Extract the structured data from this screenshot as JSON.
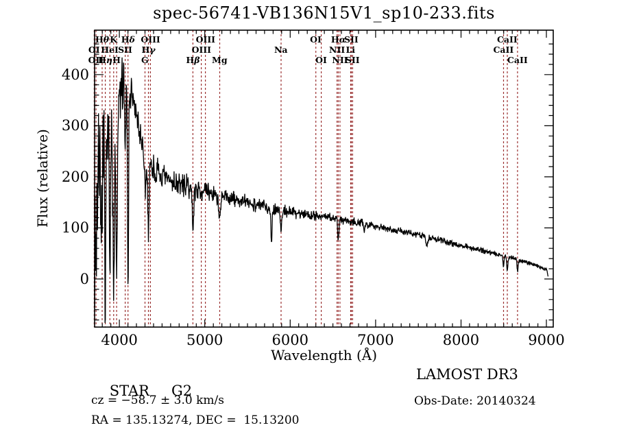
{
  "title_text": "spec-56741-VB136N15V1_sp10-233.fits",
  "colors": {
    "background": "#ffffff",
    "axis": "#000000",
    "spectrum": "#000000",
    "line_marker": "#9b3030",
    "text": "#000000"
  },
  "annotations": {
    "class_label": "STAR",
    "subclass_label": "G2",
    "cz_line": "cz = −58.7 ± 3.0 km/s",
    "radec_line": "RA = 135.13274, DEC =  15.13200",
    "survey": "LAMOST DR3",
    "obs_date": "Obs-Date: 20140324"
  },
  "chart_data": {
    "type": "line",
    "title": "spec-56741-VB136N15V1_sp10-233.fits",
    "xlabel": "Wavelength (Å)",
    "ylabel": "Flux (relative)",
    "xlim": [
      3710,
      9080
    ],
    "ylim": [
      -94,
      487
    ],
    "x_ticks": [
      4000,
      5000,
      6000,
      7000,
      8000,
      9000
    ],
    "y_ticks": [
      0,
      100,
      200,
      300,
      400
    ],
    "x_minor_step": 100,
    "y_minor_step": 20,
    "grid": false,
    "legend": "none",
    "spectral_lines": [
      {
        "label": "Hθ",
        "wavelength": 3798,
        "row": 1
      },
      {
        "label": "K",
        "wavelength": 3933,
        "row": 1
      },
      {
        "label": "Hδ",
        "wavelength": 4101,
        "row": 1
      },
      {
        "label": "OIII",
        "wavelength": 4363,
        "row": 1
      },
      {
        "label": "OIII",
        "wavelength": 5007,
        "row": 1
      },
      {
        "label": "OI",
        "wavelength": 6300,
        "row": 1
      },
      {
        "label": "Hα",
        "wavelength": 6563,
        "row": 1
      },
      {
        "label": "SII",
        "wavelength": 6716,
        "row": 1
      },
      {
        "label": "CaII",
        "wavelength": 8542,
        "row": 1
      },
      {
        "label": "OI",
        "wavelength": 3705,
        "row": 2
      },
      {
        "label": "HeI",
        "wavelength": 3889,
        "row": 2
      },
      {
        "label": "SII",
        "wavelength": 4068,
        "row": 2
      },
      {
        "label": "Hγ",
        "wavelength": 4340,
        "row": 2
      },
      {
        "label": "OIII",
        "wavelength": 4959,
        "row": 2
      },
      {
        "label": "Na",
        "wavelength": 5893,
        "row": 2
      },
      {
        "label": "NII",
        "wavelength": 6548,
        "row": 2
      },
      {
        "label": "Li",
        "wavelength": 6708,
        "row": 2
      },
      {
        "label": "CaII",
        "wavelength": 8498,
        "row": 2
      },
      {
        "label": "OII",
        "wavelength": 3727,
        "row": 3
      },
      {
        "label": "Hη",
        "wavelength": 3835,
        "row": 3
      },
      {
        "label": "H",
        "wavelength": 3968,
        "row": 3
      },
      {
        "label": "G",
        "wavelength": 4300,
        "row": 3
      },
      {
        "label": "Hβ",
        "wavelength": 4861,
        "row": 3
      },
      {
        "label": "Mg",
        "wavelength": 5175,
        "row": 3
      },
      {
        "label": "OI",
        "wavelength": 6364,
        "row": 3
      },
      {
        "label": "NII",
        "wavelength": 6583,
        "row": 3
      },
      {
        "label": "SII",
        "wavelength": 6731,
        "row": 3
      },
      {
        "label": "CaII",
        "wavelength": 8662,
        "row": 3
      }
    ],
    "flux_envelope_points": [
      [
        3710,
        150
      ],
      [
        3745,
        210
      ],
      [
        3790,
        240
      ],
      [
        3840,
        265
      ],
      [
        3890,
        285
      ],
      [
        3935,
        310
      ],
      [
        3975,
        330
      ],
      [
        4010,
        360
      ],
      [
        4050,
        395
      ],
      [
        4090,
        385
      ],
      [
        4130,
        365
      ],
      [
        4170,
        345
      ],
      [
        4210,
        310
      ],
      [
        4270,
        265
      ],
      [
        4330,
        235
      ],
      [
        4420,
        210
      ],
      [
        4520,
        196
      ],
      [
        4700,
        186
      ],
      [
        4900,
        176
      ],
      [
        5000,
        171
      ],
      [
        5200,
        163
      ],
      [
        5400,
        153
      ],
      [
        5600,
        146
      ],
      [
        5800,
        139
      ],
      [
        6000,
        131
      ],
      [
        6200,
        127
      ],
      [
        6400,
        122
      ],
      [
        6600,
        117
      ],
      [
        6800,
        111
      ],
      [
        7000,
        104
      ],
      [
        7200,
        97
      ],
      [
        7400,
        90
      ],
      [
        7600,
        82
      ],
      [
        7800,
        74
      ],
      [
        8000,
        66
      ],
      [
        8200,
        58
      ],
      [
        8400,
        50
      ],
      [
        8600,
        41
      ],
      [
        8800,
        31
      ],
      [
        8950,
        22
      ],
      [
        9000,
        18
      ],
      [
        9020,
        6
      ]
    ],
    "noise_profile": [
      [
        3710,
        210
      ],
      [
        3790,
        160
      ],
      [
        3870,
        120
      ],
      [
        3950,
        70
      ],
      [
        4100,
        55
      ],
      [
        4250,
        45
      ],
      [
        4400,
        34
      ],
      [
        4700,
        28
      ],
      [
        5000,
        22
      ],
      [
        5500,
        18
      ],
      [
        6000,
        14
      ],
      [
        6500,
        12
      ],
      [
        7000,
        9
      ],
      [
        7500,
        8
      ],
      [
        8000,
        7
      ],
      [
        8600,
        6
      ],
      [
        9020,
        5
      ]
    ],
    "absorption_features": [
      [
        3727,
        150,
        7
      ],
      [
        3798,
        190,
        7
      ],
      [
        3835,
        290,
        7
      ],
      [
        3889,
        200,
        7
      ],
      [
        3933,
        340,
        9
      ],
      [
        3968,
        310,
        9
      ],
      [
        4068,
        120,
        6
      ],
      [
        4101,
        390,
        6
      ],
      [
        4300,
        70,
        14
      ],
      [
        4340,
        130,
        8
      ],
      [
        4861,
        75,
        9
      ],
      [
        5175,
        48,
        13
      ],
      [
        5780,
        70,
        7
      ],
      [
        5893,
        42,
        8
      ],
      [
        6563,
        40,
        8
      ],
      [
        6870,
        14,
        9
      ],
      [
        7600,
        16,
        10
      ],
      [
        8498,
        22,
        6
      ],
      [
        8542,
        26,
        6
      ],
      [
        8662,
        22,
        6
      ]
    ],
    "sample_step": 4,
    "seed": 7,
    "spike_chance": 0.05,
    "spike_scale": 1.4,
    "spike_max_wavelength": 4150
  }
}
